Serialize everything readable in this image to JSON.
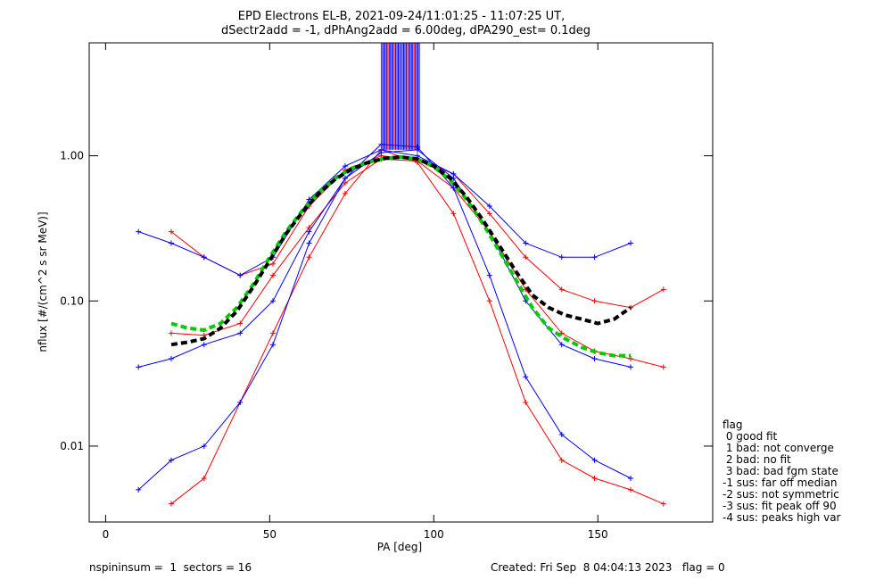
{
  "title_line1": "EPD Electrons EL-B, 2021-09-24/11:01:25 - 11:07:25 UT,",
  "title_line2": "dSectr2add = -1, dPhAng2add = 6.00deg, dPA290_est=   0.1deg",
  "footer": {
    "left": "nspininsum =  1  sectors = 16",
    "right": "Created: Fri Sep  8 04:04:13 2023   flag = 0"
  },
  "legend": {
    "title": "flag",
    "entries": [
      " 0 good fit",
      " 1 bad: not converge",
      " 2 bad: no fit",
      " 3 bad: bad fgm state",
      "-1 sus: far off median",
      "-2 sus: not symmetric",
      "-3 sus: fit peak off 90",
      "-4 sus: peaks high var"
    ]
  },
  "chart_data": {
    "type": "line",
    "title": "EPD Electrons EL-B, 2021-09-24/11:01:25 - 11:07:25 UT,",
    "subtitle": "dSectr2add = -1, dPhAng2add = 6.00deg, dPA290_est=   0.1deg",
    "xlabel": "PA [deg]",
    "ylabel": "nflux [#/(cm^2 s sr MeV)]",
    "xlim": [
      -5,
      185
    ],
    "ylim": [
      0.003,
      6.0
    ],
    "yscale": "log",
    "xticks": [
      0,
      50,
      100,
      150
    ],
    "xtick_labels": [
      "0",
      "50",
      "100",
      "150"
    ],
    "yticks": [
      0.01,
      0.1,
      1.0
    ],
    "ytick_labels": [
      "0.01",
      "0.10",
      "1.00"
    ],
    "series": [
      {
        "color": "#ff0000",
        "marker": "+",
        "x": [
          20,
          30,
          41,
          51,
          62,
          73,
          84,
          95,
          106,
          117,
          128,
          139,
          149,
          160,
          170
        ],
        "y": [
          0.06,
          0.058,
          0.07,
          0.15,
          0.32,
          0.65,
          0.95,
          0.92,
          0.6,
          0.3,
          0.12,
          0.06,
          0.045,
          0.04,
          0.035
        ]
      },
      {
        "color": "#ff0000",
        "marker": "+",
        "x": [
          20,
          30,
          41,
          51,
          62,
          73,
          84,
          95,
          106,
          117,
          128,
          139,
          149,
          160,
          170
        ],
        "y": [
          0.004,
          0.006,
          0.02,
          0.06,
          0.2,
          0.55,
          1.1,
          0.9,
          0.4,
          0.1,
          0.02,
          0.008,
          0.006,
          0.005,
          0.004
        ]
      },
      {
        "color": "#ff0000",
        "marker": "+",
        "x": [
          20,
          30,
          41,
          51,
          62,
          73,
          84,
          95,
          106,
          117,
          128,
          139,
          149,
          160,
          170
        ],
        "y": [
          0.3,
          0.2,
          0.15,
          0.18,
          0.45,
          0.8,
          1.0,
          0.95,
          0.75,
          0.4,
          0.2,
          0.12,
          0.1,
          0.09,
          0.12
        ]
      },
      {
        "color": "#0000ff",
        "marker": "+",
        "x": [
          10,
          20,
          30,
          41,
          51,
          62,
          73,
          84,
          95,
          106,
          117,
          128,
          139,
          149,
          160
        ],
        "y": [
          0.035,
          0.04,
          0.05,
          0.06,
          0.1,
          0.3,
          0.7,
          1.05,
          1.1,
          0.7,
          0.3,
          0.1,
          0.05,
          0.04,
          0.035
        ]
      },
      {
        "color": "#0000ff",
        "marker": "+",
        "x": [
          10,
          20,
          30,
          41,
          51,
          62,
          73,
          84,
          95,
          106,
          117,
          128,
          139,
          149,
          160
        ],
        "y": [
          0.3,
          0.25,
          0.2,
          0.15,
          0.2,
          0.5,
          0.85,
          1.1,
          1.0,
          0.75,
          0.45,
          0.25,
          0.2,
          0.2,
          0.25
        ]
      },
      {
        "color": "#0000ff",
        "marker": "+",
        "x": [
          10,
          20,
          30,
          41,
          51,
          62,
          73,
          84,
          95,
          106,
          117,
          128,
          139,
          149,
          160
        ],
        "y": [
          0.005,
          0.008,
          0.01,
          0.02,
          0.05,
          0.25,
          0.7,
          1.2,
          1.15,
          0.6,
          0.15,
          0.03,
          0.012,
          0.008,
          0.006
        ]
      },
      {
        "color": "#00cc00",
        "style": "dashed",
        "x": [
          20,
          25,
          30,
          35,
          40,
          45,
          50,
          55,
          60,
          65,
          70,
          75,
          80,
          85,
          90,
          95,
          100,
          105,
          110,
          115,
          120,
          125,
          130,
          135,
          140,
          145,
          150,
          155,
          160
        ],
        "y": [
          0.07,
          0.065,
          0.063,
          0.07,
          0.09,
          0.13,
          0.2,
          0.3,
          0.42,
          0.56,
          0.7,
          0.82,
          0.9,
          0.96,
          0.98,
          0.95,
          0.84,
          0.68,
          0.5,
          0.34,
          0.22,
          0.14,
          0.09,
          0.065,
          0.055,
          0.048,
          0.044,
          0.042,
          0.042
        ]
      },
      {
        "color": "#000000",
        "style": "dashed",
        "x": [
          20,
          25,
          30,
          35,
          40,
          45,
          50,
          55,
          60,
          65,
          70,
          75,
          80,
          85,
          90,
          95,
          100,
          105,
          110,
          115,
          120,
          125,
          130,
          135,
          140,
          145,
          150,
          155,
          160
        ],
        "y": [
          0.05,
          0.052,
          0.055,
          0.065,
          0.085,
          0.125,
          0.19,
          0.29,
          0.41,
          0.55,
          0.69,
          0.81,
          0.9,
          0.96,
          0.98,
          0.95,
          0.85,
          0.7,
          0.52,
          0.36,
          0.24,
          0.16,
          0.11,
          0.09,
          0.08,
          0.075,
          0.07,
          0.075,
          0.09
        ]
      }
    ]
  }
}
